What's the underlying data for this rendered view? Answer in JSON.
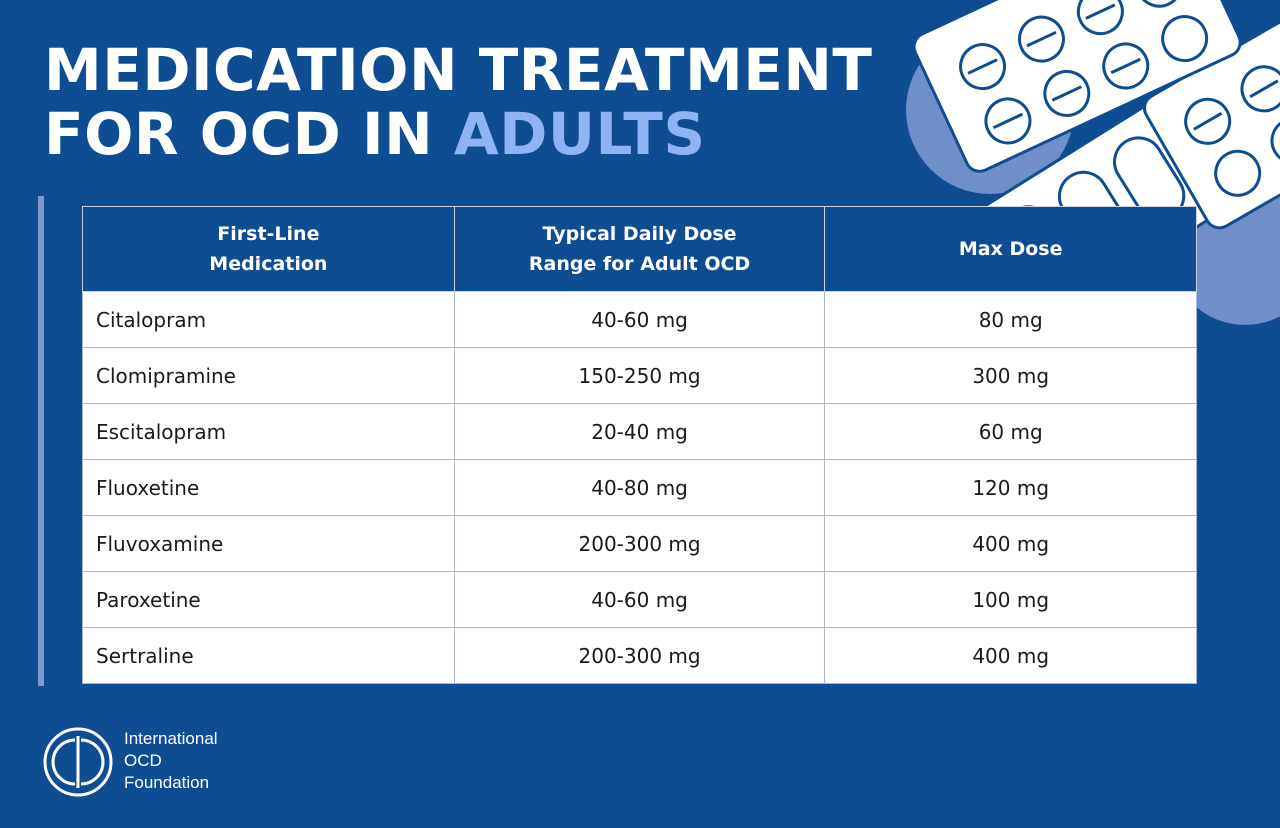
{
  "title": {
    "line1": "MEDICATION TREATMENT",
    "line2_prefix": "FOR OCD IN",
    "line2_accent": "ADULTS"
  },
  "colors": {
    "background": "#0e4d92",
    "accent": "#8fb4f5",
    "header_cell": "#0e4d92",
    "body_cell": "#ffffff"
  },
  "table": {
    "headers": [
      [
        "First-Line",
        "Medication"
      ],
      [
        "Typical Daily Dose",
        "Range for Adult OCD"
      ],
      [
        "Max Dose"
      ]
    ],
    "rows": [
      {
        "medication": "Citalopram",
        "range": "40-60 mg",
        "max": "80 mg"
      },
      {
        "medication": "Clomipramine",
        "range": "150-250 mg",
        "max": "300 mg"
      },
      {
        "medication": "Escitalopram",
        "range": "20-40 mg",
        "max": "60 mg"
      },
      {
        "medication": "Fluoxetine",
        "range": "40-80 mg",
        "max": "120 mg"
      },
      {
        "medication": "Fluvoxamine",
        "range": "200-300 mg",
        "max": "400 mg"
      },
      {
        "medication": "Paroxetine",
        "range": "40-60 mg",
        "max": "100 mg"
      },
      {
        "medication": "Sertraline",
        "range": "200-300 mg",
        "max": "400 mg"
      }
    ]
  },
  "logo": {
    "icon": "iocdf-logo-icon",
    "lines": [
      "International",
      "OCD",
      "Foundation"
    ]
  },
  "decoration": {
    "icon": "pill-blister-packs-illustration"
  }
}
